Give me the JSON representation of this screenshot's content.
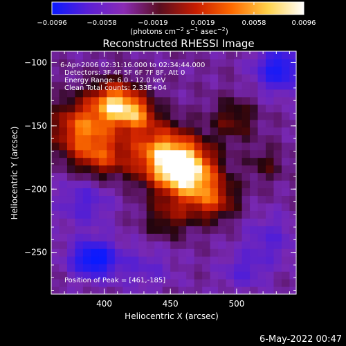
{
  "chart_data": {
    "type": "heatmap",
    "title": "Reconstructed RHESSI Image",
    "xlabel": "Heliocentric X (arcsec)",
    "ylabel": "Heliocentric Y (arcsec)",
    "xlim": [
      360,
      545
    ],
    "ylim": [
      -283,
      -91
    ],
    "xticks": [
      400,
      450,
      500
    ],
    "yticks": [
      -100,
      -150,
      -200,
      -250
    ],
    "colorbar": {
      "ticks": [
        "-0.0096",
        "-0.0058",
        "-0.0019",
        "0.0019",
        "0.0058",
        "0.0096"
      ],
      "range": [
        -0.0096,
        0.0096
      ],
      "colors": [
        "#0a1aff",
        "#5b1fd6",
        "#8a2bb4",
        "#5a0e20",
        "#c81c00",
        "#ff6a00",
        "#ffd24a",
        "#ffffff"
      ]
    },
    "annotations": [
      "6-Apr-2006 02:31:16.000 to 02:34:44.000",
      "Detectors: 3F 4F 5F 6F 7F 8F, Att 0",
      "Energy Range: 6.0 - 12.0 keV",
      "Clean     Total counts: 2.33E+04"
    ],
    "peak_label": "Position of Peak = [461,-185]",
    "peak": {
      "x": 461,
      "y": -185,
      "value": 0.0096
    },
    "grid": false,
    "features": [
      {
        "x": 461,
        "y": -185,
        "sx": 16,
        "sy": 14,
        "a": 1.15
      },
      {
        "x": 442,
        "y": -170,
        "sx": 18,
        "sy": 16,
        "a": 0.75
      },
      {
        "x": 408,
        "y": -132,
        "sx": 12,
        "sy": 12,
        "a": 0.9
      },
      {
        "x": 425,
        "y": -140,
        "sx": 10,
        "sy": 10,
        "a": 0.6
      },
      {
        "x": 383,
        "y": -152,
        "sx": 16,
        "sy": 16,
        "a": 0.75
      },
      {
        "x": 398,
        "y": -175,
        "sx": 14,
        "sy": 12,
        "a": 0.5
      },
      {
        "x": 480,
        "y": -208,
        "sx": 14,
        "sy": 12,
        "a": 0.6
      },
      {
        "x": 448,
        "y": -222,
        "sx": 12,
        "sy": 12,
        "a": 0.35
      },
      {
        "x": 498,
        "y": -145,
        "sx": 12,
        "sy": 12,
        "a": 0.35
      },
      {
        "x": 522,
        "y": -180,
        "sx": 10,
        "sy": 10,
        "a": 0.25
      },
      {
        "x": 392,
        "y": -255,
        "sx": 12,
        "sy": 10,
        "a": -0.9
      },
      {
        "x": 532,
        "y": -105,
        "sx": 12,
        "sy": 12,
        "a": -0.75
      },
      {
        "x": 385,
        "y": -210,
        "sx": 14,
        "sy": 14,
        "a": -0.35
      },
      {
        "x": 430,
        "y": -262,
        "sx": 16,
        "sy": 12,
        "a": -0.25
      },
      {
        "x": 525,
        "y": -240,
        "sx": 14,
        "sy": 14,
        "a": -0.3
      },
      {
        "x": 505,
        "y": -265,
        "sx": 12,
        "sy": 10,
        "a": -0.3
      }
    ]
  },
  "footer": {
    "timestamp": "6-May-2022 00:47"
  }
}
